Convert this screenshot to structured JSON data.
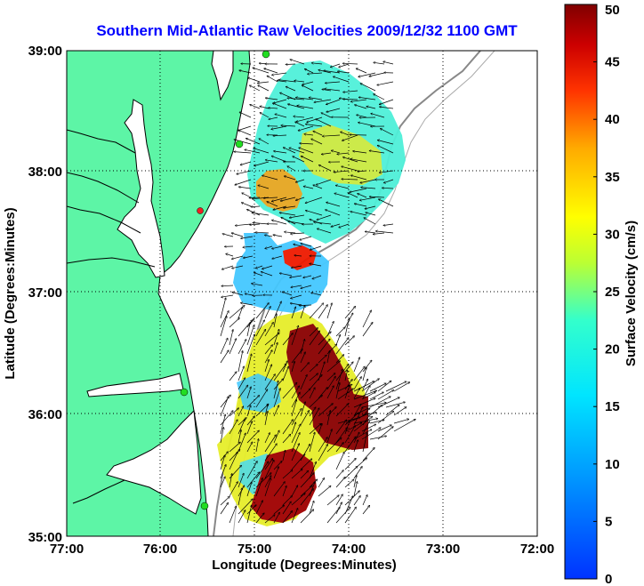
{
  "title": "Southern Mid-Atlantic Raw Velocities 2009/12/32 1100 GMT",
  "xlabel": "Longitude (Degrees:Minutes)",
  "ylabel": "Latitude (Degrees:Minutes)",
  "colorbar": {
    "label": "Surface Velocity (cm/s)",
    "ticks": [
      "0",
      "5",
      "10",
      "15",
      "20",
      "25",
      "30",
      "35",
      "40",
      "45",
      "50"
    ],
    "range": [
      0,
      50
    ]
  },
  "x_ticks": [
    "77:00",
    "76:00",
    "75:00",
    "74:00",
    "73:00",
    "72:00"
  ],
  "y_ticks": [
    "39:00",
    "38:00",
    "37:00",
    "36:00",
    "35:00"
  ],
  "colors": {
    "land": "#5df5a6",
    "title": "#0000ff",
    "coast": "#000000",
    "bathymetry": "#888888",
    "station": "#22dd22",
    "station_alert": "#ee2222"
  },
  "map": {
    "lon_range": [
      -77,
      -72
    ],
    "lat_range": [
      35,
      39
    ],
    "grid": true
  }
}
